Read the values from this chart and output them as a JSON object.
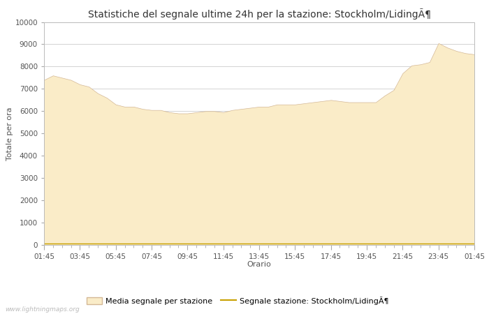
{
  "title": "Statistiche del segnale ultime 24h per la stazione: Stockholm/LidingÃ¶",
  "xlabel": "Orario",
  "ylabel": "Totale per ora",
  "watermark": "www.lightningmaps.org",
  "x_labels": [
    "01:45",
    "03:45",
    "05:45",
    "07:45",
    "09:45",
    "11:45",
    "13:45",
    "15:45",
    "17:45",
    "19:45",
    "21:45",
    "23:45",
    "01:45"
  ],
  "ylim": [
    0,
    10000
  ],
  "yticks": [
    0,
    1000,
    2000,
    3000,
    4000,
    5000,
    6000,
    7000,
    8000,
    9000,
    10000
  ],
  "fill_color": "#FAECC8",
  "fill_edge_color": "#D4B896",
  "line_color": "#C8A000",
  "legend_fill_label": "Media segnale per stazione",
  "legend_line_label": "Segnale stazione: Stockholm/LidingÃ¶",
  "x_values": [
    0,
    1,
    2,
    3,
    4,
    5,
    6,
    7,
    8,
    9,
    10,
    11,
    12,
    13,
    14,
    15,
    16,
    17,
    18,
    19,
    20,
    21,
    22,
    23,
    24,
    25,
    26,
    27,
    28,
    29,
    30,
    31,
    32,
    33,
    34,
    35,
    36,
    37,
    38,
    39,
    40,
    41,
    42,
    43,
    44,
    45,
    46,
    47,
    48
  ],
  "y_fill": [
    7400,
    7600,
    7500,
    7400,
    7200,
    7100,
    6800,
    6600,
    6300,
    6200,
    6200,
    6100,
    6050,
    6050,
    5950,
    5900,
    5900,
    5950,
    6000,
    6000,
    5950,
    6050,
    6100,
    6150,
    6200,
    6200,
    6300,
    6300,
    6300,
    6350,
    6400,
    6450,
    6500,
    6450,
    6400,
    6400,
    6400,
    6400,
    6700,
    6950,
    7700,
    8050,
    8100,
    8200,
    9050,
    8850,
    8700,
    8600,
    8550
  ],
  "y_line": [
    50,
    50,
    50,
    50,
    50,
    50,
    50,
    50,
    50,
    50,
    50,
    50,
    50,
    50,
    50,
    50,
    50,
    50,
    50,
    50,
    50,
    50,
    50,
    50,
    50,
    50,
    50,
    50,
    50,
    50,
    50,
    50,
    50,
    50,
    50,
    50,
    50,
    50,
    50,
    50,
    50,
    50,
    50,
    50,
    50,
    50,
    50,
    50,
    50
  ],
  "bg_color": "#ffffff",
  "grid_color": "#cccccc",
  "title_fontsize": 10,
  "label_fontsize": 8,
  "tick_fontsize": 7.5
}
